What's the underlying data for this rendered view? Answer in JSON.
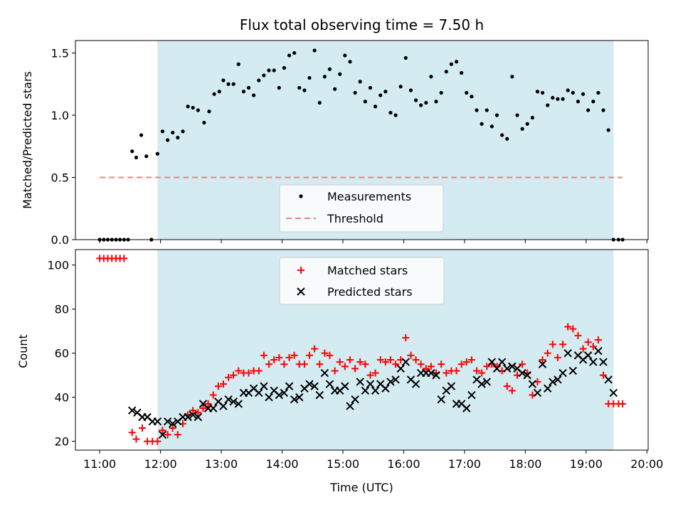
{
  "chart_data": [
    {
      "type": "scatter",
      "title": "Flux total observing time = 7.50 h",
      "ylabel": "Matched/Predicted stars",
      "xlabel": "",
      "xlim": [
        10.6,
        20.02
      ],
      "ylim": [
        0,
        1.6
      ],
      "yticks": [
        0,
        0.5,
        1.0,
        1.5
      ],
      "ytick_labels": [
        "0.0",
        "0.5",
        "1.0",
        "1.5"
      ],
      "shaded_interval": [
        11.95,
        19.45
      ],
      "shade_color": "#d4ebf1",
      "threshold": {
        "name": "Threshold",
        "value": 0.5,
        "x_range": [
          11.0,
          19.6
        ],
        "color": "#f08080",
        "style": "dashed"
      },
      "legend": {
        "placement": "lower-center",
        "entries": [
          "Measurements",
          "Threshold"
        ]
      },
      "series": [
        {
          "name": "Measurements",
          "marker": "dot",
          "color": "#000000",
          "x": [
            11.0,
            11.067,
            11.133,
            11.2,
            11.267,
            11.333,
            11.4,
            11.467,
            11.533,
            11.6,
            11.683,
            11.767,
            11.85,
            11.95,
            12.033,
            12.117,
            12.2,
            12.283,
            12.367,
            12.45,
            12.533,
            12.617,
            12.717,
            12.8,
            12.883,
            12.967,
            13.033,
            13.117,
            13.2,
            13.283,
            13.367,
            13.45,
            13.533,
            13.617,
            13.7,
            13.783,
            13.867,
            13.95,
            14.033,
            14.117,
            14.2,
            14.283,
            14.367,
            14.45,
            14.533,
            14.617,
            14.7,
            14.783,
            14.867,
            14.95,
            15.033,
            15.117,
            15.2,
            15.283,
            15.367,
            15.45,
            15.533,
            15.617,
            15.7,
            15.783,
            15.867,
            15.95,
            16.033,
            16.117,
            16.2,
            16.283,
            16.367,
            16.45,
            16.533,
            16.617,
            16.7,
            16.783,
            16.867,
            16.95,
            17.033,
            17.117,
            17.2,
            17.283,
            17.367,
            17.45,
            17.533,
            17.617,
            17.7,
            17.783,
            17.867,
            17.95,
            18.033,
            18.117,
            18.2,
            18.283,
            18.367,
            18.45,
            18.533,
            18.617,
            18.7,
            18.783,
            18.867,
            18.95,
            19.033,
            19.117,
            19.2,
            19.283,
            19.367,
            19.45,
            19.533,
            19.6
          ],
          "y": [
            0.0,
            0.0,
            0.0,
            0.0,
            0.0,
            0.0,
            0.0,
            0.0,
            0.71,
            0.66,
            0.84,
            0.67,
            0.0,
            0.69,
            0.87,
            0.8,
            0.86,
            0.82,
            0.87,
            1.07,
            1.06,
            1.04,
            0.94,
            1.03,
            1.17,
            1.19,
            1.28,
            1.25,
            1.25,
            1.41,
            1.19,
            1.22,
            1.16,
            1.28,
            1.32,
            1.36,
            1.36,
            1.22,
            1.38,
            1.48,
            1.5,
            1.22,
            1.2,
            1.3,
            1.52,
            1.1,
            1.31,
            1.37,
            1.21,
            1.33,
            1.48,
            1.43,
            1.18,
            1.27,
            1.11,
            1.22,
            1.07,
            1.16,
            1.19,
            1.02,
            1.0,
            1.23,
            1.46,
            1.2,
            1.12,
            1.08,
            1.1,
            1.31,
            1.11,
            1.18,
            1.35,
            1.41,
            1.43,
            1.34,
            1.18,
            1.15,
            1.04,
            0.93,
            1.04,
            0.91,
            1.0,
            0.84,
            0.81,
            1.31,
            1.0,
            0.89,
            0.93,
            0.98,
            1.19,
            1.18,
            1.08,
            1.14,
            1.13,
            1.13,
            1.2,
            1.18,
            1.11,
            1.17,
            1.04,
            1.11,
            1.18,
            1.04,
            0.88,
            0.0,
            0.0,
            0.0
          ]
        }
      ]
    },
    {
      "type": "scatter",
      "title": "",
      "xlabel": "Time (UTC)",
      "ylabel": "Count",
      "xlim": [
        10.6,
        20.02
      ],
      "ylim": [
        16,
        107
      ],
      "yticks": [
        20,
        40,
        60,
        80,
        100
      ],
      "ytick_labels": [
        "20",
        "40",
        "60",
        "80",
        "100"
      ],
      "xticks": [
        11,
        12,
        13,
        14,
        15,
        16,
        17,
        18,
        19,
        20
      ],
      "xtick_labels": [
        "11:00",
        "12:00",
        "13:00",
        "14:00",
        "15:00",
        "16:00",
        "17:00",
        "18:00",
        "19:00",
        "20:00"
      ],
      "shaded_interval": [
        11.95,
        19.45
      ],
      "shade_color": "#d4ebf1",
      "legend": {
        "placement": "upper-center",
        "entries": [
          "Matched stars",
          "Predicted stars"
        ]
      },
      "series": [
        {
          "name": "Matched stars",
          "marker": "plus",
          "color": "#ff0000",
          "x": [
            11.0,
            11.067,
            11.133,
            11.2,
            11.267,
            11.333,
            11.4,
            11.533,
            11.6,
            11.7,
            11.783,
            11.867,
            11.95,
            12.033,
            12.117,
            12.2,
            12.283,
            12.367,
            12.45,
            12.533,
            12.617,
            12.7,
            12.783,
            12.867,
            12.95,
            13.033,
            13.117,
            13.2,
            13.283,
            13.367,
            13.45,
            13.533,
            13.617,
            13.7,
            13.783,
            13.867,
            13.95,
            14.033,
            14.117,
            14.2,
            14.283,
            14.367,
            14.45,
            14.533,
            14.617,
            14.7,
            14.783,
            14.867,
            14.95,
            15.033,
            15.117,
            15.2,
            15.283,
            15.367,
            15.45,
            15.533,
            15.617,
            15.7,
            15.783,
            15.867,
            15.95,
            16.033,
            16.117,
            16.2,
            16.283,
            16.367,
            16.45,
            16.533,
            16.617,
            16.7,
            16.783,
            16.867,
            16.95,
            17.033,
            17.117,
            17.2,
            17.283,
            17.367,
            17.45,
            17.533,
            17.617,
            17.7,
            17.783,
            17.867,
            17.95,
            18.033,
            18.117,
            18.2,
            18.283,
            18.367,
            18.45,
            18.533,
            18.617,
            18.7,
            18.783,
            18.867,
            18.95,
            19.033,
            19.117,
            19.2,
            19.283,
            19.367,
            19.45,
            19.533,
            19.6
          ],
          "y": [
            103,
            103,
            103,
            103,
            103,
            103,
            103,
            24,
            21,
            26,
            20,
            20,
            20,
            25,
            23,
            26,
            23,
            28,
            32,
            34,
            33,
            35,
            37,
            41,
            45,
            46,
            49,
            50,
            52,
            51,
            51,
            52,
            52,
            59,
            55,
            57,
            58,
            55,
            58,
            59,
            55,
            55,
            59,
            62,
            55,
            60,
            59,
            52,
            56,
            54,
            57,
            53,
            56,
            55,
            50,
            51,
            57,
            56,
            57,
            55,
            57,
            67,
            59,
            57,
            55,
            53,
            54,
            51,
            55,
            51,
            52,
            52,
            55,
            56,
            57,
            52,
            51,
            54,
            55,
            54,
            52,
            45,
            43,
            50,
            55,
            51,
            41,
            47,
            57,
            60,
            64,
            58,
            64,
            72,
            71,
            68,
            62,
            65,
            63,
            66,
            50,
            37,
            37,
            37,
            37
          ],
          "_note_hidden": ""
        },
        {
          "name": "Predicted stars",
          "marker": "x",
          "color": "#000000",
          "x": [
            11.533,
            11.617,
            11.7,
            11.783,
            11.867,
            11.95,
            12.033,
            12.117,
            12.2,
            12.283,
            12.367,
            12.45,
            12.533,
            12.617,
            12.7,
            12.783,
            12.867,
            12.95,
            13.033,
            13.117,
            13.2,
            13.283,
            13.367,
            13.45,
            13.533,
            13.617,
            13.7,
            13.783,
            13.867,
            13.95,
            14.033,
            14.117,
            14.2,
            14.283,
            14.367,
            14.45,
            14.533,
            14.617,
            14.7,
            14.783,
            14.867,
            14.95,
            15.033,
            15.117,
            15.2,
            15.283,
            15.367,
            15.45,
            15.533,
            15.617,
            15.7,
            15.783,
            15.867,
            15.95,
            16.033,
            16.117,
            16.2,
            16.283,
            16.367,
            16.45,
            16.533,
            16.617,
            16.7,
            16.783,
            16.867,
            16.95,
            17.033,
            17.117,
            17.2,
            17.283,
            17.367,
            17.45,
            17.533,
            17.617,
            17.7,
            17.783,
            17.867,
            17.95,
            18.033,
            18.117,
            18.2,
            18.283,
            18.367,
            18.45,
            18.533,
            18.617,
            18.7,
            18.783,
            18.867,
            18.95,
            19.033,
            19.117,
            19.2,
            19.283,
            19.367,
            19.45
          ],
          "y": [
            34,
            33,
            31,
            31,
            29,
            29,
            23,
            29,
            28,
            29,
            31,
            31,
            32,
            31,
            37,
            35,
            35,
            38,
            36,
            39,
            38,
            37,
            42,
            42,
            44,
            42,
            45,
            40,
            43,
            41,
            42,
            45,
            39,
            40,
            44,
            46,
            45,
            41,
            51,
            46,
            43,
            43,
            45,
            36,
            39,
            47,
            43,
            46,
            43,
            46,
            44,
            47,
            48,
            53,
            56,
            48,
            46,
            51,
            51,
            51,
            50,
            39,
            43,
            45,
            37,
            37,
            35,
            41,
            48,
            46,
            47,
            56,
            53,
            56,
            53,
            54,
            53,
            51,
            50,
            46,
            42,
            55,
            44,
            47,
            48,
            51,
            60,
            52,
            59,
            57,
            59,
            56,
            61,
            56,
            48,
            42
          ]
        }
      ]
    }
  ]
}
